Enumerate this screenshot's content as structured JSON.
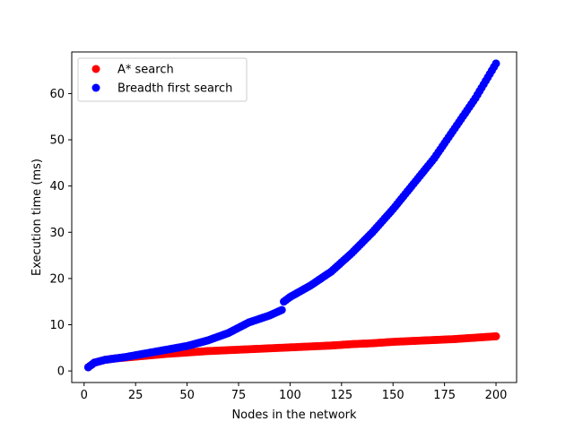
{
  "chart_data": {
    "type": "scatter",
    "title": "",
    "xlabel": "Nodes in the network",
    "ylabel": "Execution time (ms)",
    "xlim": [
      -6,
      210
    ],
    "ylim": [
      -2.5,
      69
    ],
    "xticks": [
      0,
      25,
      50,
      75,
      100,
      125,
      150,
      175,
      200
    ],
    "yticks": [
      0,
      10,
      20,
      30,
      40,
      50,
      60
    ],
    "grid": false,
    "legend_position": "top-left",
    "series": [
      {
        "name": "A* search",
        "color": "#ff0000",
        "x": [
          2,
          5,
          10,
          15,
          20,
          25,
          30,
          40,
          50,
          60,
          70,
          80,
          90,
          100,
          110,
          120,
          130,
          140,
          150,
          160,
          170,
          180,
          190,
          200
        ],
        "y": [
          0.8,
          1.8,
          2.4,
          2.7,
          2.9,
          3.1,
          3.3,
          3.7,
          4.0,
          4.3,
          4.5,
          4.7,
          4.9,
          5.1,
          5.3,
          5.5,
          5.8,
          6.0,
          6.3,
          6.5,
          6.7,
          6.9,
          7.2,
          7.5
        ]
      },
      {
        "name": "Breadth first search",
        "color": "#0000ff",
        "x": [
          2,
          5,
          10,
          15,
          20,
          25,
          30,
          40,
          50,
          60,
          70,
          80,
          90,
          96,
          97,
          100,
          110,
          120,
          130,
          140,
          150,
          160,
          170,
          180,
          190,
          200
        ],
        "y": [
          0.8,
          1.8,
          2.4,
          2.7,
          3.0,
          3.4,
          3.8,
          4.6,
          5.4,
          6.6,
          8.2,
          10.5,
          12.0,
          13.2,
          15.0,
          16.0,
          18.5,
          21.5,
          25.5,
          30.0,
          35.0,
          40.5,
          46.0,
          52.5,
          59.0,
          66.5
        ]
      }
    ]
  }
}
